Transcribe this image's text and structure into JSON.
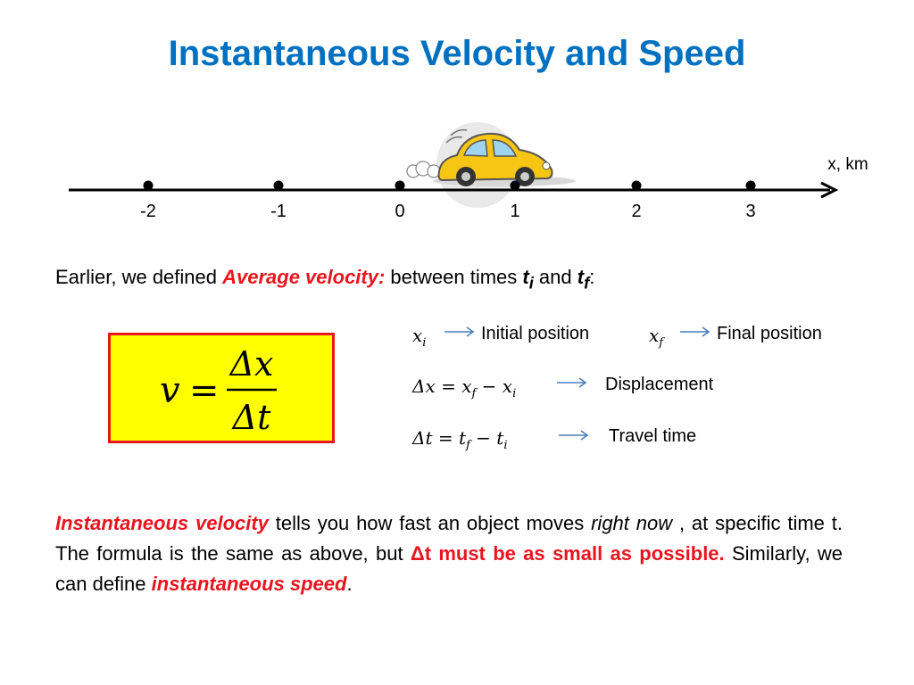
{
  "title": "Instantaneous Velocity and Speed",
  "number_line": {
    "axis_label": "x, km",
    "ticks": [
      "-2",
      "-1",
      "0",
      "1",
      "2",
      "3"
    ]
  },
  "intro": {
    "prefix": "Earlier, we defined ",
    "term": "Average velocity:",
    "middle": " between times ",
    "t": "t",
    "i": "i",
    "and": "  and ",
    "f": "f",
    "colon": ":"
  },
  "formula": {
    "lhs": "v",
    "equals": "=",
    "numerator": "Δx",
    "denominator": "Δt"
  },
  "definitions": [
    {
      "symbol": "x",
      "sub": "i",
      "label": "Initial position"
    },
    {
      "symbol": "x",
      "sub": "f",
      "label": "Final position"
    },
    {
      "symbol_text": "Δx = x",
      "label": "Displacement"
    },
    {
      "symbol_text": "Δt = t",
      "label": "Travel time"
    }
  ],
  "paragraph": {
    "term": "Instantaneous velocity",
    "part1": " tells you how fast an object moves ",
    "right_now": "right now",
    "part2": " , at specific time t.  The formula  is the same as above, but  ",
    "emphasis": "Δt must be as small as possible.",
    "part3": " Similarly, we can define ",
    "speed_term": "instantaneous speed",
    "end": "."
  },
  "colors": {
    "title": "#0070C0",
    "accent_red": "#E8141E",
    "box_fill": "#FFFF00",
    "arrow": "#4A7EBB"
  }
}
